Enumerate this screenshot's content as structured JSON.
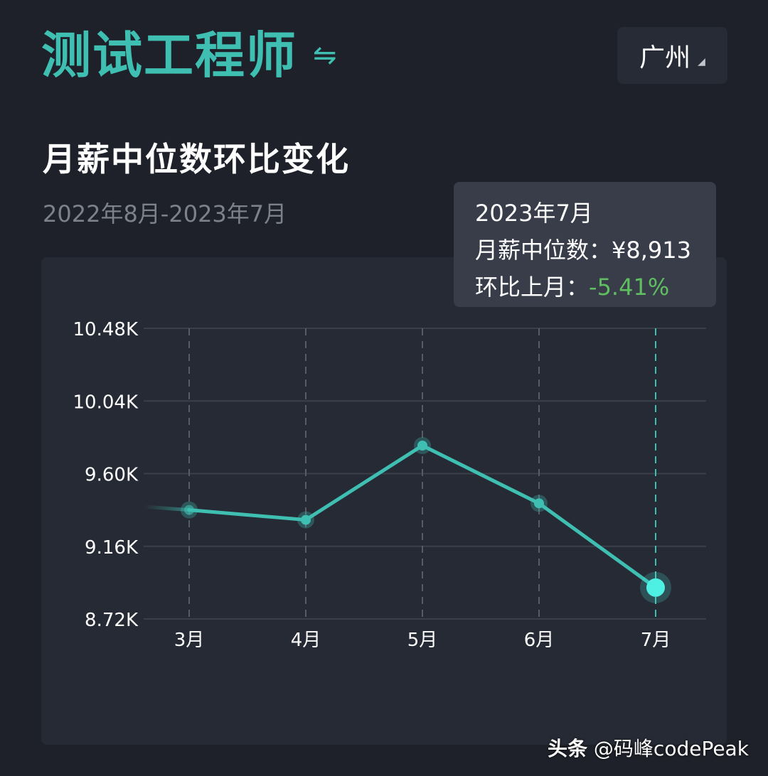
{
  "header": {
    "title": "测试工程师",
    "swap_icon": "⇋",
    "city": "广州"
  },
  "section": {
    "title": "月薪中位数环比变化",
    "date_range": "2022年8月-2023年7月"
  },
  "tooltip": {
    "date": "2023年7月",
    "median_label": "月薪中位数：",
    "median_value": "¥8,913",
    "mom_label": "环比上月：",
    "mom_value": "-5.41%"
  },
  "watermark": {
    "brand": "头条",
    "handle": "@码峰codePeak"
  },
  "colors": {
    "accent": "#3ebfb2",
    "highlight": "#4ef0e4",
    "negative_change": "#5fbf60"
  },
  "chart_data": {
    "type": "line",
    "categories": [
      "3月",
      "4月",
      "5月",
      "6月",
      "7月"
    ],
    "values": [
      9.38,
      9.32,
      9.77,
      9.42,
      8.91
    ],
    "prev_value": 9.4,
    "ylim": [
      8.72,
      10.48
    ],
    "y_ticks": [
      10.48,
      10.04,
      9.6,
      9.16,
      8.72
    ],
    "y_tick_labels": [
      "10.48K",
      "10.04K",
      "9.60K",
      "9.16K",
      "8.72K"
    ],
    "highlight_index": 4,
    "grid": true
  }
}
